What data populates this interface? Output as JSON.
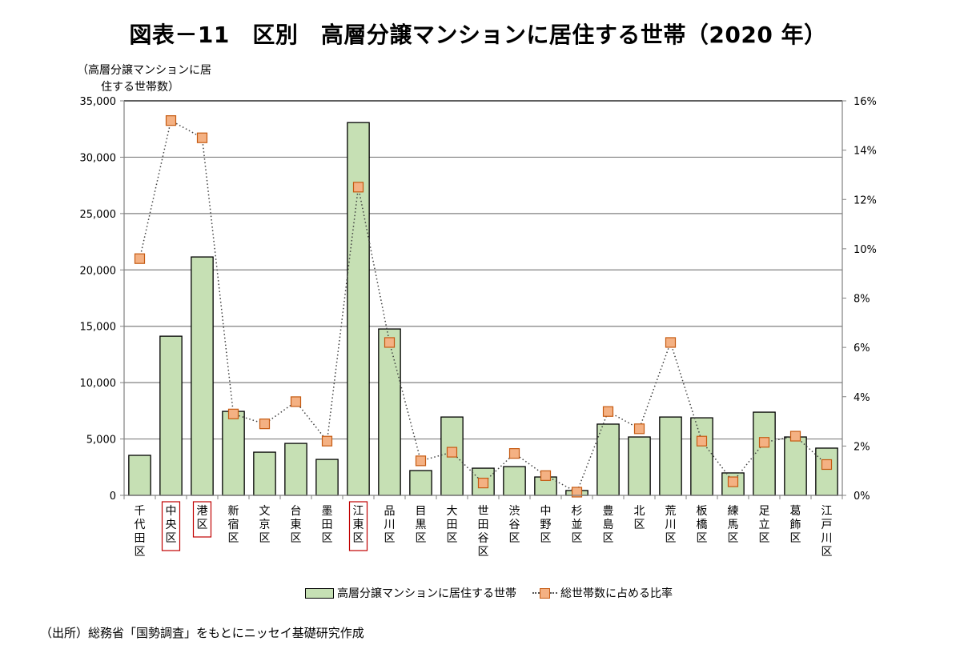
{
  "chart_data": {
    "type": "bar+line",
    "title": "図表－11　区別　高層分譲マンションに居住する世帯（2020 年）",
    "y_left_label_lines": [
      "（高層分譲マンションに居",
      "住する世帯数）"
    ],
    "categories": [
      "千代田区",
      "中央区",
      "港区",
      "新宿区",
      "文京区",
      "台東区",
      "墨田区",
      "江東区",
      "品川区",
      "目黒区",
      "大田区",
      "世田谷区",
      "渋谷区",
      "中野区",
      "杉並区",
      "豊島区",
      "北区",
      "荒川区",
      "板橋区",
      "練馬区",
      "足立区",
      "葛飾区",
      "江戸川区"
    ],
    "highlighted_categories": [
      "中央区",
      "港区",
      "江東区"
    ],
    "series": [
      {
        "name": "高層分譲マンションに居住する世帯",
        "type": "bar",
        "axis": "left",
        "color": "#c6e0b4",
        "values": [
          3550,
          14120,
          21150,
          7450,
          3830,
          4610,
          3190,
          33070,
          14760,
          2200,
          6950,
          2410,
          2550,
          1630,
          430,
          6320,
          5180,
          6950,
          6880,
          1990,
          7380,
          5180,
          4190
        ]
      },
      {
        "name": "総世帯数に占める比率",
        "type": "line",
        "axis": "right",
        "color": "#f4b183",
        "line_style": "dotted",
        "values": [
          9.6,
          15.2,
          14.5,
          3.3,
          2.9,
          3.8,
          2.2,
          12.5,
          6.2,
          1.4,
          1.75,
          0.5,
          1.7,
          0.8,
          0.13,
          3.4,
          2.7,
          6.2,
          2.2,
          0.55,
          2.15,
          2.4,
          1.25
        ]
      }
    ],
    "y_left": {
      "min": 0,
      "max": 35000,
      "step": 5000,
      "tick_labels": [
        "0",
        "5,000",
        "10,000",
        "15,000",
        "20,000",
        "25,000",
        "30,000",
        "35,000"
      ]
    },
    "y_right": {
      "min": 0,
      "max": 16,
      "step": 2,
      "tick_labels": [
        "0%",
        "2%",
        "4%",
        "6%",
        "8%",
        "10%",
        "12%",
        "14%",
        "16%"
      ]
    },
    "grid": true,
    "legend_position": "bottom"
  },
  "legend": {
    "bar_label": "高層分譲マンションに居住する世帯",
    "line_label": "総世帯数に占める比率"
  },
  "source_note": "（出所）総務省「国勢調査」をもとにニッセイ基礎研究作成"
}
